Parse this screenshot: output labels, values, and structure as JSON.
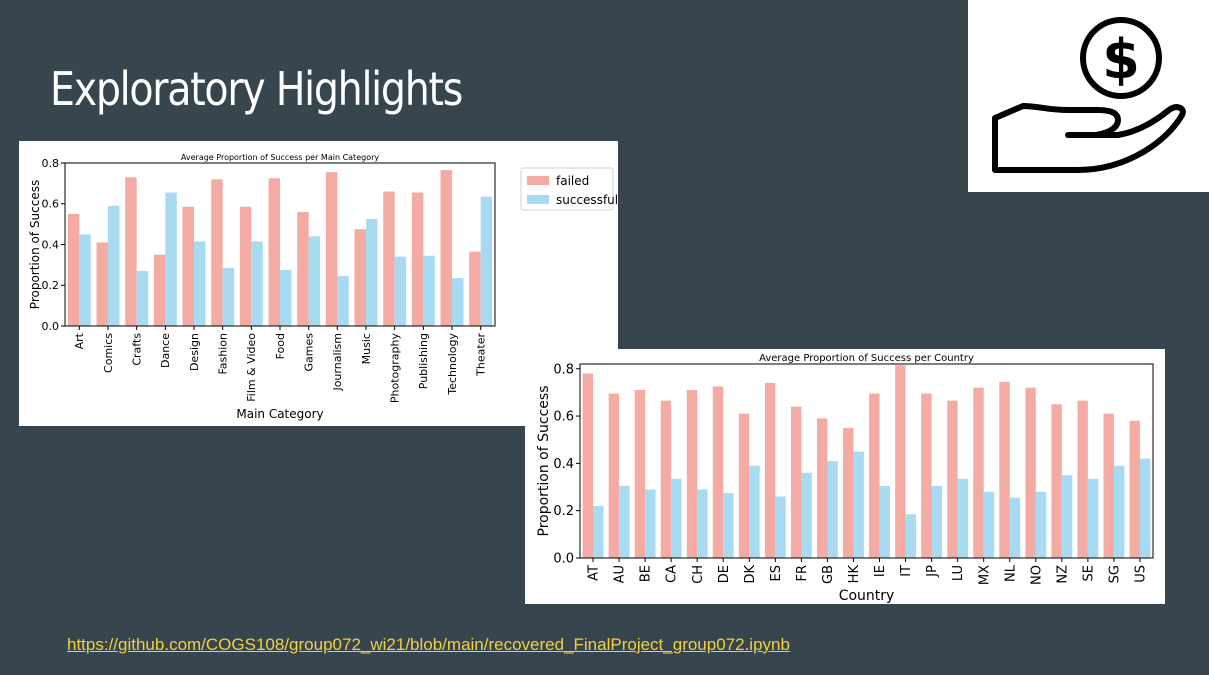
{
  "slide": {
    "title": "Exploratory Highlights",
    "link": "https://github.com/COGS108/group072_wi21/blob/main/recovered_FinalProject_group072.ipynb"
  },
  "colors": {
    "background": "#37454f",
    "failed": "#f4aba3",
    "successful": "#a8daf2",
    "link": "#f4d03f"
  },
  "icon": {
    "name": "hand-holding-dollar-icon",
    "glyph": "$"
  },
  "chart_data": [
    {
      "type": "bar",
      "title": "Average Proportion of Success per Main Category",
      "xlabel": "Main Category",
      "ylabel": "Proportion of Success",
      "ylim": [
        0,
        0.8
      ],
      "yticks": [
        "0.0",
        "0.2",
        "0.4",
        "0.6",
        "0.8"
      ],
      "legend": "top-right-outside",
      "categories": [
        "Art",
        "Comics",
        "Crafts",
        "Dance",
        "Design",
        "Fashion",
        "Film & Video",
        "Food",
        "Games",
        "Journalism",
        "Music",
        "Photography",
        "Publishing",
        "Technology",
        "Theater"
      ],
      "series": [
        {
          "name": "failed",
          "values": [
            0.55,
            0.41,
            0.73,
            0.35,
            0.585,
            0.72,
            0.585,
            0.725,
            0.56,
            0.755,
            0.475,
            0.66,
            0.655,
            0.765,
            0.365
          ]
        },
        {
          "name": "successful",
          "values": [
            0.45,
            0.59,
            0.27,
            0.655,
            0.415,
            0.285,
            0.415,
            0.275,
            0.44,
            0.245,
            0.525,
            0.34,
            0.345,
            0.235,
            0.635
          ]
        }
      ]
    },
    {
      "type": "bar",
      "title": "Average Proportion of Success per Country",
      "xlabel": "Country",
      "ylabel": "Proportion of Success",
      "ylim": [
        0,
        0.82
      ],
      "yticks": [
        "0.0",
        "0.2",
        "0.4",
        "0.6",
        "0.8"
      ],
      "categories": [
        "AT",
        "AU",
        "BE",
        "CA",
        "CH",
        "DE",
        "DK",
        "ES",
        "FR",
        "GB",
        "HK",
        "IE",
        "IT",
        "JP",
        "LU",
        "MX",
        "NL",
        "NO",
        "NZ",
        "SE",
        "SG",
        "US"
      ],
      "series": [
        {
          "name": "failed",
          "values": [
            0.78,
            0.695,
            0.71,
            0.665,
            0.71,
            0.725,
            0.61,
            0.74,
            0.64,
            0.59,
            0.55,
            0.695,
            0.815,
            0.695,
            0.665,
            0.72,
            0.745,
            0.72,
            0.65,
            0.665,
            0.61,
            0.58
          ]
        },
        {
          "name": "successful",
          "values": [
            0.22,
            0.305,
            0.29,
            0.335,
            0.29,
            0.275,
            0.39,
            0.26,
            0.36,
            0.41,
            0.45,
            0.305,
            0.185,
            0.305,
            0.335,
            0.28,
            0.255,
            0.28,
            0.35,
            0.335,
            0.39,
            0.42
          ]
        }
      ]
    }
  ]
}
